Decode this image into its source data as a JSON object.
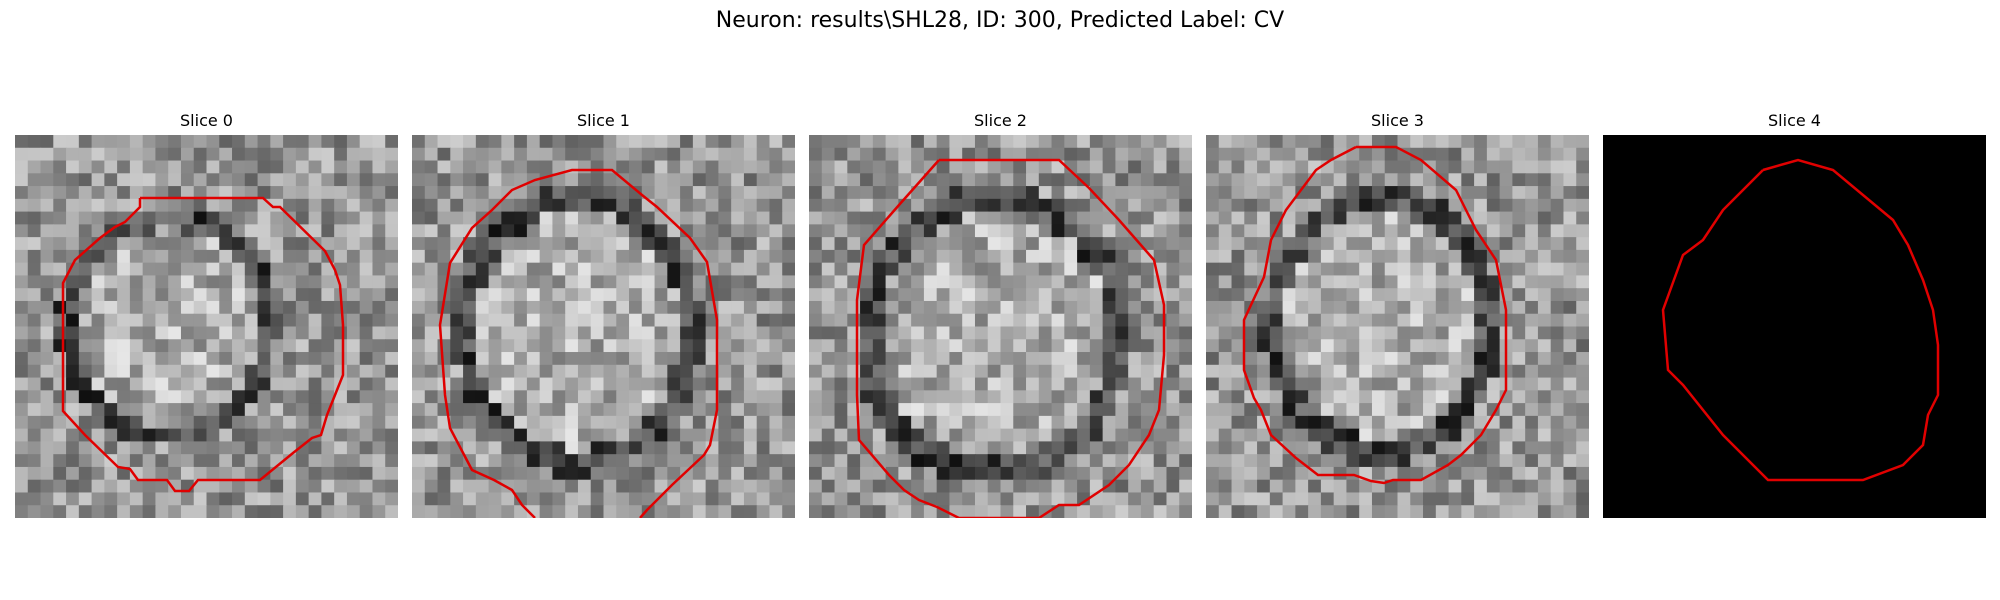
{
  "title": "Neuron: results\\SHL28, ID: 300, Predicted Label: CV",
  "slices": [
    {
      "label": "Slice 0",
      "blank": false
    },
    {
      "label": "Slice 1",
      "blank": false
    },
    {
      "label": "Slice 2",
      "blank": false
    },
    {
      "label": "Slice 3",
      "blank": false
    },
    {
      "label": "Slice 4",
      "blank": true
    }
  ],
  "contour_color": "#e00000"
}
